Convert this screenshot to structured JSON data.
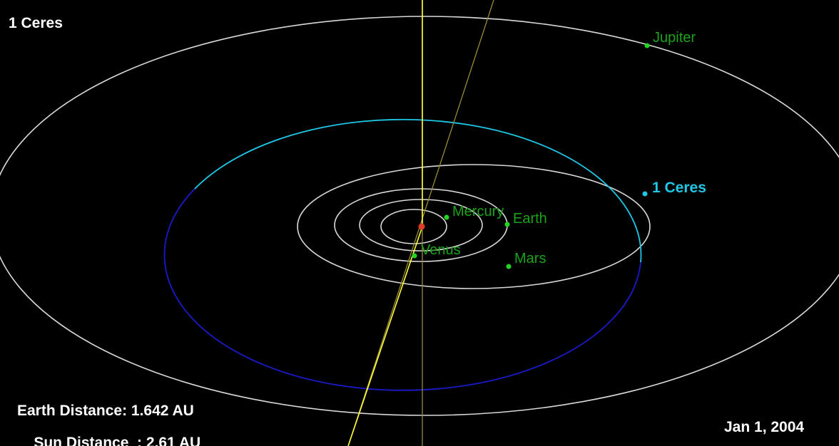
{
  "title": "1 Ceres",
  "target": {
    "name": "1 Ceres",
    "color": "#1ec8e6"
  },
  "planets": [
    {
      "name": "Mercury"
    },
    {
      "name": "Venus"
    },
    {
      "name": "Earth"
    },
    {
      "name": "Mars"
    },
    {
      "name": "Jupiter"
    }
  ],
  "readouts": {
    "earth_distance_label": "Earth Distance",
    "earth_distance_value": "1.642 AU",
    "sun_distance_label": "Sun Distance",
    "sun_distance_value": "2.61 AU"
  },
  "date": "Jan 1, 2004",
  "colors": {
    "background": "#000000",
    "planet_orbit": "#d9d9d9",
    "ceres_orbit_above": "#1ec8e6",
    "ceres_orbit_below": "#1a1acc",
    "planet_marker": "#22d422",
    "planet_label": "#1aa31a",
    "sun": "#e03a2a",
    "axis_line_1": "#ffff3a",
    "axis_line_2": "#9a8a36",
    "hud_text": "#ffffff"
  }
}
